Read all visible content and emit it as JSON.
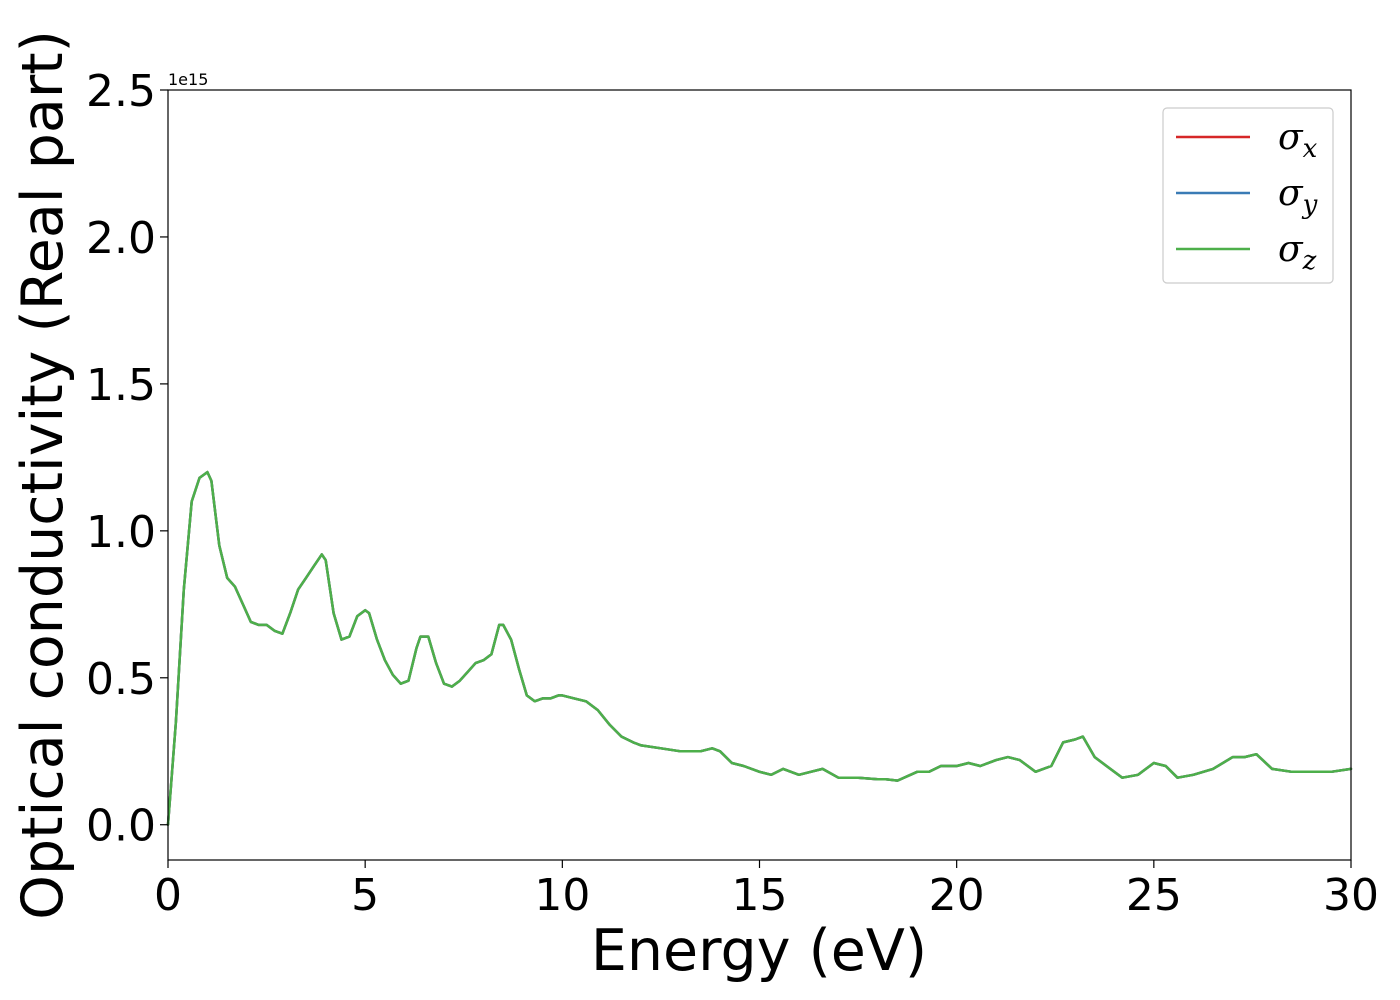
{
  "chart_data": {
    "type": "line",
    "title": "",
    "xlabel": "Energy (eV)",
    "ylabel": "Optical conductivity (Real part)",
    "y_offset_label": "1e15",
    "xlim": [
      0,
      30
    ],
    "ylim": [
      -0.12,
      2.5
    ],
    "y_scale_factor": 1000000000000000.0,
    "xticks": [
      0,
      5,
      10,
      15,
      20,
      25,
      30
    ],
    "xtick_labels": [
      "0",
      "5",
      "10",
      "15",
      "20",
      "25",
      "30"
    ],
    "yticks": [
      0.0,
      0.5,
      1.0,
      1.5,
      2.0,
      2.5
    ],
    "ytick_labels": [
      "0.0",
      "0.5",
      "1.0",
      "1.5",
      "2.0",
      "2.5"
    ],
    "grid": false,
    "legend_position": "top-right",
    "series": [
      {
        "name": "σx",
        "symbol": "σ",
        "subscript": "x",
        "color": "#d62728"
      },
      {
        "name": "σy",
        "symbol": "σ",
        "subscript": "y",
        "color": "#3a7bb5"
      },
      {
        "name": "σz",
        "symbol": "σ",
        "subscript": "z",
        "color": "#4daf4a"
      }
    ],
    "x": [
      0,
      0.2,
      0.4,
      0.6,
      0.8,
      1.0,
      1.1,
      1.3,
      1.5,
      1.7,
      1.9,
      2.1,
      2.3,
      2.5,
      2.7,
      2.9,
      3.1,
      3.3,
      3.5,
      3.7,
      3.9,
      4.0,
      4.2,
      4.4,
      4.6,
      4.8,
      5.0,
      5.1,
      5.3,
      5.5,
      5.7,
      5.9,
      6.1,
      6.3,
      6.4,
      6.6,
      6.8,
      7.0,
      7.2,
      7.4,
      7.6,
      7.8,
      8.0,
      8.2,
      8.4,
      8.5,
      8.7,
      8.9,
      9.1,
      9.3,
      9.5,
      9.7,
      9.9,
      10.0,
      10.3,
      10.6,
      10.9,
      11.2,
      11.5,
      11.8,
      12.0,
      12.5,
      13.0,
      13.5,
      13.8,
      14.0,
      14.3,
      14.6,
      15.0,
      15.3,
      15.6,
      16.0,
      16.3,
      16.6,
      17.0,
      17.5,
      18.0,
      18.2,
      18.5,
      19.0,
      19.3,
      19.6,
      20.0,
      20.3,
      20.6,
      21.0,
      21.3,
      21.6,
      22.0,
      22.4,
      22.7,
      23.0,
      23.2,
      23.5,
      23.8,
      24.2,
      24.6,
      25.0,
      25.3,
      25.6,
      26.0,
      26.5,
      27.0,
      27.3,
      27.6,
      28.0,
      28.5,
      29.0,
      29.5,
      30.0
    ],
    "values": [
      0.0,
      0.35,
      0.8,
      1.1,
      1.18,
      1.2,
      1.17,
      0.95,
      0.84,
      0.81,
      0.75,
      0.69,
      0.68,
      0.68,
      0.66,
      0.65,
      0.72,
      0.8,
      0.84,
      0.88,
      0.92,
      0.9,
      0.72,
      0.63,
      0.64,
      0.71,
      0.73,
      0.72,
      0.63,
      0.56,
      0.51,
      0.48,
      0.49,
      0.6,
      0.64,
      0.64,
      0.55,
      0.48,
      0.47,
      0.49,
      0.52,
      0.55,
      0.56,
      0.58,
      0.68,
      0.68,
      0.63,
      0.53,
      0.44,
      0.42,
      0.43,
      0.43,
      0.44,
      0.44,
      0.43,
      0.42,
      0.39,
      0.34,
      0.3,
      0.28,
      0.27,
      0.26,
      0.25,
      0.25,
      0.26,
      0.25,
      0.21,
      0.2,
      0.18,
      0.17,
      0.19,
      0.17,
      0.18,
      0.19,
      0.16,
      0.16,
      0.155,
      0.155,
      0.15,
      0.18,
      0.18,
      0.2,
      0.2,
      0.21,
      0.2,
      0.22,
      0.23,
      0.22,
      0.18,
      0.2,
      0.28,
      0.29,
      0.3,
      0.23,
      0.2,
      0.16,
      0.17,
      0.21,
      0.2,
      0.16,
      0.17,
      0.19,
      0.23,
      0.23,
      0.24,
      0.19,
      0.18,
      0.18,
      0.18,
      0.19
    ]
  }
}
